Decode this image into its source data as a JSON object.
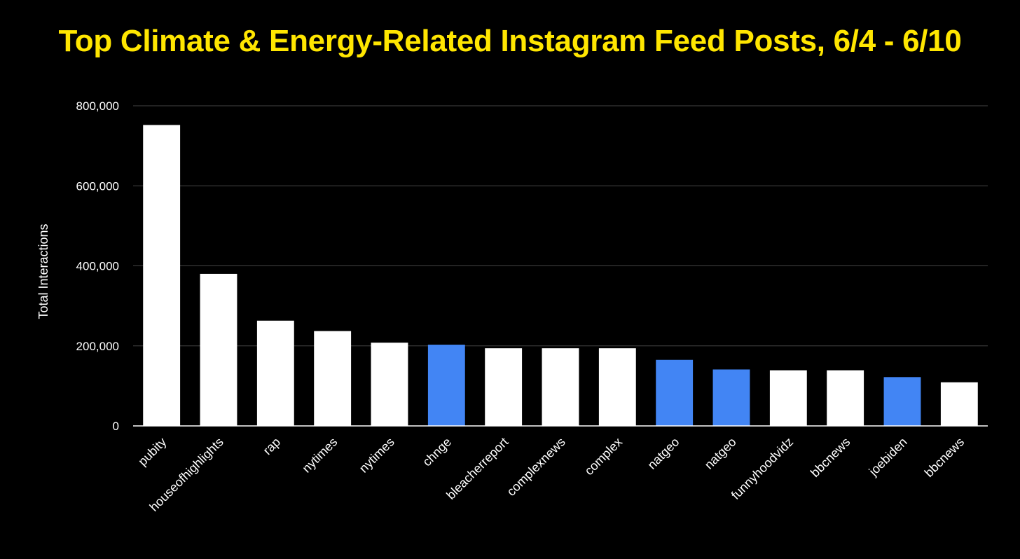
{
  "chart_data": {
    "type": "bar",
    "title": "Top Climate & Energy-Related Instagram Feed Posts, 6/4 - 6/10",
    "ylabel": "Total Interactions",
    "xlabel": "",
    "ylim": [
      0,
      800000
    ],
    "yticks": [
      0,
      200000,
      400000,
      600000,
      800000
    ],
    "ytick_labels": [
      "0",
      "200,000",
      "400,000",
      "600,000",
      "800,000"
    ],
    "grid": true,
    "categories": [
      "pubity",
      "houseofhighlights",
      "rap",
      "nytimes",
      "nytimes",
      "chnge",
      "bleacherreport",
      "complexnews",
      "complex",
      "natgeo",
      "natgeo",
      "funnyhoodvidz",
      "bbcnews",
      "joebiden",
      "bbcnews"
    ],
    "values": [
      752000,
      380000,
      263000,
      237000,
      208000,
      203000,
      194000,
      194000,
      194000,
      165000,
      141000,
      139000,
      139000,
      122000,
      109000
    ],
    "highlighted": [
      false,
      false,
      false,
      false,
      false,
      true,
      false,
      false,
      false,
      true,
      true,
      false,
      false,
      true,
      false
    ],
    "colors": {
      "background": "#000000",
      "title": "#FFE600",
      "bar": "#FFFFFF",
      "bar_highlight": "#4285F4",
      "grid": "#444444",
      "axis": "#FFFFFF"
    }
  }
}
